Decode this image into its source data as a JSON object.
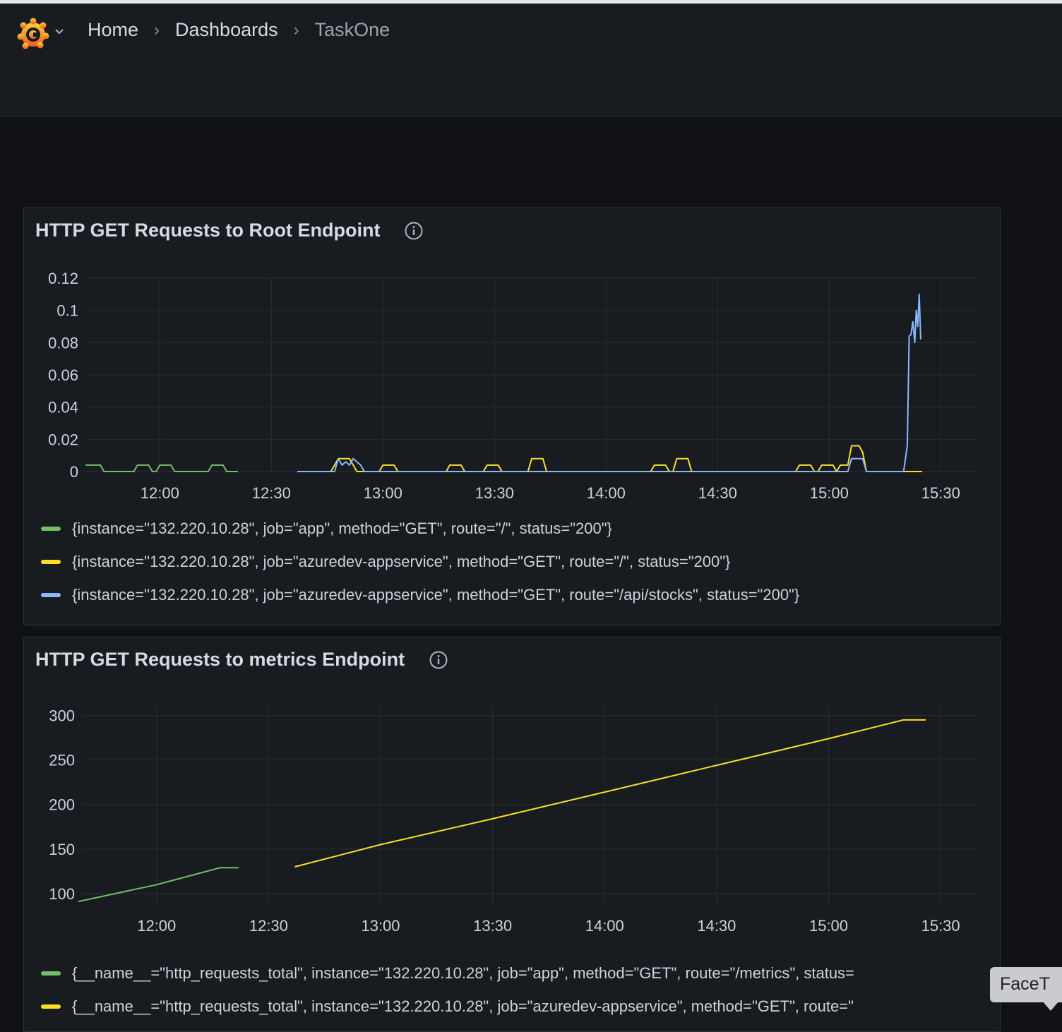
{
  "breadcrumbs": [
    "Home",
    "Dashboards",
    "TaskOne"
  ],
  "panels": [
    {
      "title": "HTTP GET Requests to Root Endpoint",
      "legend": [
        {
          "label": "{instance=\"132.220.10.28\", job=\"app\", method=\"GET\", route=\"/\", status=\"200\"}",
          "color": "#73bf69"
        },
        {
          "label": "{instance=\"132.220.10.28\", job=\"azuredev-appservice\", method=\"GET\", route=\"/\", status=\"200\"}",
          "color": "#fade2a"
        },
        {
          "label": "{instance=\"132.220.10.28\", job=\"azuredev-appservice\", method=\"GET\", route=\"/api/stocks\", status=\"200\"}",
          "color": "#8ab8ff"
        }
      ]
    },
    {
      "title": "HTTP GET Requests to metrics Endpoint",
      "legend": [
        {
          "label": "{__name__=\"http_requests_total\", instance=\"132.220.10.28\", job=\"app\", method=\"GET\", route=\"/metrics\", status=",
          "color": "#73bf69"
        },
        {
          "label": "{__name__=\"http_requests_total\", instance=\"132.220.10.28\", job=\"azuredev-appservice\", method=\"GET\", route=\"",
          "color": "#fade2a"
        }
      ]
    }
  ],
  "tooltip_text": "FaceT",
  "chart_data": [
    {
      "type": "line",
      "x_ticks": [
        "12:00",
        "12:30",
        "13:00",
        "13:30",
        "14:00",
        "14:30",
        "15:00",
        "15:30"
      ],
      "y_ticks": [
        "0",
        "0.02",
        "0.04",
        "0.06",
        "0.08",
        "0.1",
        "0.12"
      ],
      "xlim": [
        "11:40",
        "15:40"
      ],
      "ylim": [
        0,
        0.12
      ],
      "grid": true,
      "legend_position": "bottom",
      "series": [
        {
          "color": "#73bf69",
          "points": [
            [
              "11:40",
              0.004
            ],
            [
              "11:44",
              0.004
            ],
            [
              "11:45",
              0
            ],
            [
              "11:53",
              0
            ],
            [
              "11:54",
              0.004
            ],
            [
              "11:57",
              0.004
            ],
            [
              "11:58",
              0
            ],
            [
              "11:59",
              0
            ],
            [
              "12:00",
              0.004
            ],
            [
              "12:03",
              0.004
            ],
            [
              "12:04",
              0
            ],
            [
              "12:13",
              0
            ],
            [
              "12:14",
              0.004
            ],
            [
              "12:17",
              0.004
            ],
            [
              "12:18",
              0
            ],
            [
              "12:21",
              0
            ]
          ]
        },
        {
          "color": "#fade2a",
          "points": [
            [
              "12:37",
              0
            ],
            [
              "12:46",
              0
            ],
            [
              "12:47",
              0.004
            ],
            [
              "12:48",
              0.008
            ],
            [
              "12:51",
              0.008
            ],
            [
              "12:52",
              0.004
            ],
            [
              "12:53",
              0
            ],
            [
              "12:59",
              0
            ],
            [
              "13:00",
              0.004
            ],
            [
              "13:03",
              0.004
            ],
            [
              "13:04",
              0
            ],
            [
              "13:17",
              0
            ],
            [
              "13:18",
              0.004
            ],
            [
              "13:21",
              0.004
            ],
            [
              "13:22",
              0
            ],
            [
              "13:27",
              0
            ],
            [
              "13:28",
              0.004
            ],
            [
              "13:31",
              0.004
            ],
            [
              "13:32",
              0
            ],
            [
              "13:39",
              0
            ],
            [
              "13:40",
              0.008
            ],
            [
              "13:43",
              0.008
            ],
            [
              "13:44",
              0
            ],
            [
              "14:12",
              0
            ],
            [
              "14:13",
              0.004
            ],
            [
              "14:16",
              0.004
            ],
            [
              "14:17",
              0
            ],
            [
              "14:18",
              0
            ],
            [
              "14:19",
              0.008
            ],
            [
              "14:22",
              0.008
            ],
            [
              "14:23",
              0
            ],
            [
              "14:51",
              0
            ],
            [
              "14:52",
              0.004
            ],
            [
              "14:55",
              0.004
            ],
            [
              "14:56",
              0
            ],
            [
              "14:57",
              0
            ],
            [
              "14:58",
              0.004
            ],
            [
              "15:01",
              0.004
            ],
            [
              "15:02",
              0
            ],
            [
              "15:03",
              0.004
            ],
            [
              "15:05",
              0.004
            ],
            [
              "15:06",
              0.016
            ],
            [
              "15:08",
              0.016
            ],
            [
              "15:09",
              0.012
            ],
            [
              "15:10",
              0
            ],
            [
              "15:25",
              0
            ]
          ]
        },
        {
          "color": "#8ab8ff",
          "points": [
            [
              "12:37",
              0
            ],
            [
              "12:47",
              0
            ],
            [
              "12:48",
              0.008
            ],
            [
              "12:49",
              0.004
            ],
            [
              "12:50",
              0.006
            ],
            [
              "12:51",
              0.004
            ],
            [
              "12:52",
              0.008
            ],
            [
              "12:54",
              0.004
            ],
            [
              "12:55",
              0
            ],
            [
              "15:05",
              0
            ],
            [
              "15:06",
              0.008
            ],
            [
              "15:09",
              0.008
            ],
            [
              "15:10",
              0
            ],
            [
              "15:20",
              0
            ],
            [
              "15:21",
              0.016
            ],
            [
              "15:21.5",
              0.084
            ],
            [
              "15:22",
              0.085
            ],
            [
              "15:22.5",
              0.093
            ],
            [
              "15:23",
              0.08
            ],
            [
              "15:23.4",
              0.1
            ],
            [
              "15:23.8",
              0.09
            ],
            [
              "15:24.2",
              0.11
            ],
            [
              "15:24.6",
              0.082
            ]
          ]
        }
      ]
    },
    {
      "type": "line",
      "x_ticks": [
        "12:00",
        "12:30",
        "13:00",
        "13:30",
        "14:00",
        "14:30",
        "15:00",
        "15:30"
      ],
      "y_ticks": [
        "100",
        "150",
        "200",
        "250",
        "300"
      ],
      "xlim": [
        "11:40",
        "15:40"
      ],
      "ylim": [
        88,
        310
      ],
      "grid": true,
      "legend_position": "bottom",
      "series": [
        {
          "color": "#73bf69",
          "points": [
            [
              "11:39",
              91
            ],
            [
              "12:00",
              110
            ],
            [
              "12:17",
              129
            ],
            [
              "12:22",
              129
            ]
          ]
        },
        {
          "color": "#fade2a",
          "points": [
            [
              "12:37",
              130
            ],
            [
              "13:00",
              155
            ],
            [
              "13:30",
              184
            ],
            [
              "14:00",
              214
            ],
            [
              "14:30",
              244
            ],
            [
              "15:00",
              274
            ],
            [
              "15:20",
              295
            ],
            [
              "15:26",
              295
            ]
          ]
        }
      ]
    }
  ]
}
